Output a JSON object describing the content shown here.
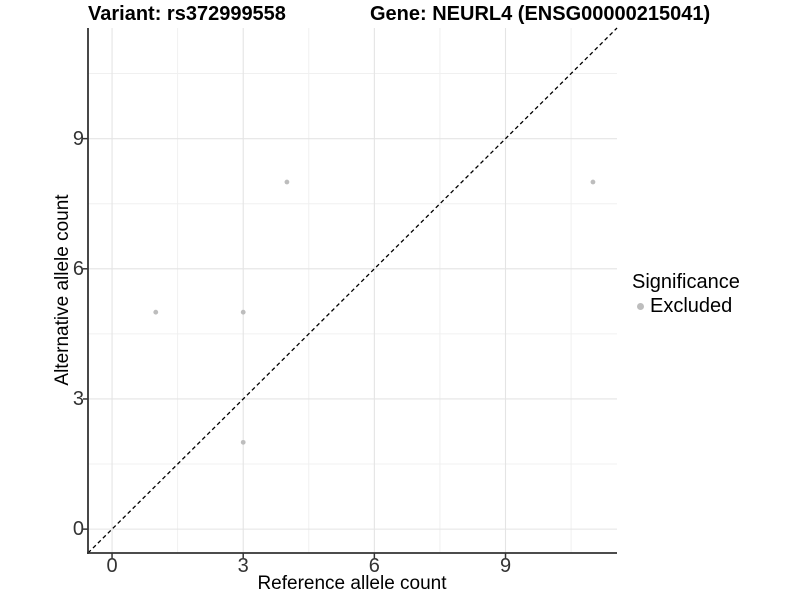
{
  "chart_data": {
    "type": "scatter",
    "title_left": "Variant: rs372999558",
    "title_right": "Gene: NEURL4 (ENSG00000215041)",
    "xlabel": "Reference allele count",
    "ylabel": "Alternative allele count",
    "points": [
      {
        "x": 1,
        "y": 5
      },
      {
        "x": 3,
        "y": 2
      },
      {
        "x": 3,
        "y": 5
      },
      {
        "x": 4,
        "y": 8
      },
      {
        "x": 11,
        "y": 8
      }
    ],
    "series_name": "Excluded",
    "xticks": [
      0,
      3,
      6,
      9
    ],
    "yticks": [
      0,
      3,
      6,
      9
    ],
    "minor_ticks": [
      1.5,
      4.5,
      7.5,
      10.5
    ],
    "xlim": [
      -0.55,
      11.55
    ],
    "ylim": [
      -0.55,
      11.55
    ],
    "grid": true,
    "identity_line": {
      "style": "dashed",
      "equation": "y = x",
      "color": "#000000"
    },
    "legend": {
      "position": "right",
      "title": "Significance",
      "items": [
        {
          "label": "Excluded",
          "color": "#bdbdbd"
        }
      ]
    },
    "colors": {
      "point": "#bdbdbd",
      "grid_major": "#e4e4e4",
      "grid_minor": "#f0f0f0",
      "axis": "#333333",
      "tick_label": "#333333",
      "background": "#ffffff"
    }
  }
}
